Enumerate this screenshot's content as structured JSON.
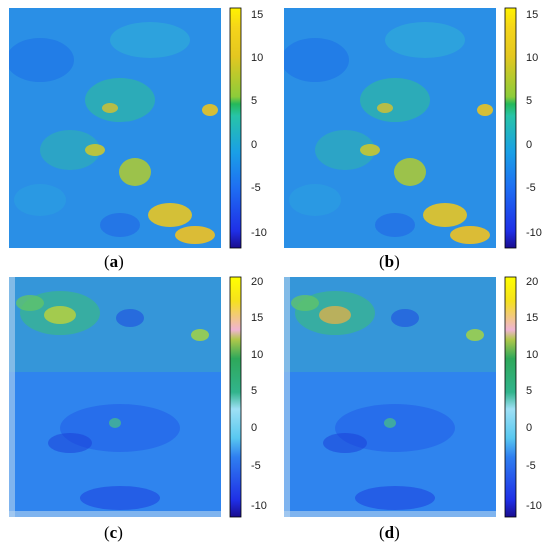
{
  "panels": [
    {
      "id": "a",
      "label": "a",
      "colorbar_ticks": [
        "15",
        "10",
        "5",
        "0",
        "-5",
        "-10"
      ],
      "colorbar_values": [
        15,
        10,
        5,
        0,
        -5,
        -10
      ],
      "colorbar_range": [
        -12,
        16
      ],
      "colormap": [
        "#1a0d8f",
        "#1f2fe6",
        "#1e6ef3",
        "#1aa0e6",
        "#27c4a8",
        "#25b85a",
        "#8ccc3a",
        "#e4c720",
        "#f5d51a",
        "#fff200"
      ],
      "colormap_stops": [
        0,
        0.07,
        0.25,
        0.4,
        0.55,
        0.6,
        0.63,
        0.8,
        0.92,
        1
      ]
    },
    {
      "id": "b",
      "label": "b",
      "colorbar_ticks": [
        "15",
        "10",
        "5",
        "0",
        "-5",
        "-10"
      ],
      "colorbar_values": [
        15,
        10,
        5,
        0,
        -5,
        -10
      ],
      "colorbar_range": [
        -12,
        16
      ],
      "colormap": [
        "#1a0d8f",
        "#1f2fe6",
        "#1e6ef3",
        "#1aa0e6",
        "#27c4a8",
        "#25b85a",
        "#8ccc3a",
        "#e4c720",
        "#f5d51a",
        "#fff200"
      ],
      "colormap_stops": [
        0,
        0.07,
        0.25,
        0.4,
        0.55,
        0.6,
        0.63,
        0.8,
        0.92,
        1
      ]
    },
    {
      "id": "c",
      "label": "c",
      "colorbar_ticks": [
        "20",
        "15",
        "10",
        "5",
        "0",
        "-5",
        "-10"
      ],
      "colorbar_values": [
        20,
        15,
        10,
        5,
        0,
        -5,
        -10
      ],
      "colorbar_range": [
        -12,
        21
      ],
      "colormap": [
        "#1a0d8f",
        "#1f2fe6",
        "#2f7ff0",
        "#59c8f0",
        "#9ee0f5",
        "#32b48c",
        "#2ea85a",
        "#b0c84a",
        "#f0b4d2",
        "#f5e11e",
        "#ffff00"
      ],
      "colormap_stops": [
        0,
        0.07,
        0.25,
        0.33,
        0.45,
        0.52,
        0.66,
        0.74,
        0.78,
        0.9,
        1
      ]
    },
    {
      "id": "d",
      "label": "d",
      "colorbar_ticks": [
        "20",
        "15",
        "10",
        "5",
        "0",
        "-5",
        "-10"
      ],
      "colorbar_values": [
        20,
        15,
        10,
        5,
        0,
        -5,
        -10
      ],
      "colorbar_range": [
        -12,
        21
      ],
      "colormap": [
        "#1a0d8f",
        "#1f2fe6",
        "#2f7ff0",
        "#59c8f0",
        "#9ee0f5",
        "#32b48c",
        "#2ea85a",
        "#b0c84a",
        "#f0b4d2",
        "#f5e11e",
        "#ffff00"
      ],
      "colormap_stops": [
        0,
        0.07,
        0.25,
        0.33,
        0.45,
        0.52,
        0.66,
        0.74,
        0.78,
        0.9,
        1
      ]
    }
  ]
}
